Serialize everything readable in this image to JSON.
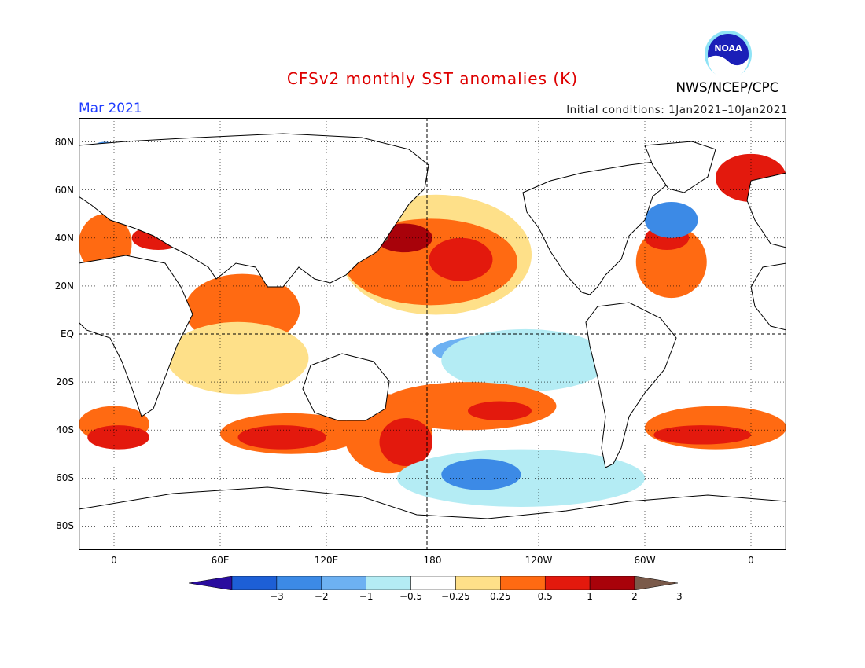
{
  "header": {
    "title": "CFSv2 monthly SST anomalies (K)",
    "month": "Mar 2021",
    "initial_conditions": "Initial conditions: 1Jan2021–10Jan2021",
    "organization": "NWS/NCEP/CPC",
    "logo_text": "NOAA"
  },
  "axes": {
    "lat_labels": [
      {
        "text": "80N",
        "lat": 80
      },
      {
        "text": "60N",
        "lat": 60
      },
      {
        "text": "40N",
        "lat": 40
      },
      {
        "text": "20N",
        "lat": 20
      },
      {
        "text": "EQ",
        "lat": 0
      },
      {
        "text": "20S",
        "lat": -20
      },
      {
        "text": "40S",
        "lat": -40
      },
      {
        "text": "60S",
        "lat": -60
      },
      {
        "text": "80S",
        "lat": -80
      }
    ],
    "lon_labels": [
      {
        "text": "0",
        "lon": 0
      },
      {
        "text": "60E",
        "lon": 60
      },
      {
        "text": "120E",
        "lon": 120
      },
      {
        "text": "180",
        "lon": 180
      },
      {
        "text": "120W",
        "lon": 240
      },
      {
        "text": "60W",
        "lon": 300
      },
      {
        "text": "0",
        "lon": 360
      }
    ],
    "lon_range": [
      -20,
      380
    ],
    "lat_range": [
      -90,
      90
    ]
  },
  "colorbar": {
    "labels": [
      "−3",
      "−2",
      "−1",
      "−0.5",
      "−0.25",
      "0.25",
      "0.5",
      "1",
      "2",
      "3"
    ],
    "colors": [
      "#2a0c9e",
      "#1d5fd6",
      "#3c8ae6",
      "#6db1f2",
      "#b4ecf4",
      "#ffffff",
      "#fee089",
      "#ff6a12",
      "#e3190d",
      "#a8020a",
      "#7a5a4a"
    ]
  },
  "anomaly_regions": [
    {
      "level": "#fee089",
      "lon": [
        128,
        236
      ],
      "lat": [
        8,
        58
      ]
    },
    {
      "level": "#ff6a12",
      "lon": [
        130,
        228
      ],
      "lat": [
        12,
        48
      ]
    },
    {
      "level": "#e3190d",
      "lon": [
        178,
        214
      ],
      "lat": [
        22,
        40
      ]
    },
    {
      "level": "#a8020a",
      "lon": [
        148,
        180
      ],
      "lat": [
        34,
        46
      ]
    },
    {
      "level": "#7a5a4a",
      "lon": [
        147,
        155
      ],
      "lat": [
        38,
        43
      ]
    },
    {
      "level": "#6db1f2",
      "lon": [
        180,
        272
      ],
      "lat": [
        -14,
        0
      ]
    },
    {
      "level": "#3c8ae6",
      "lon": [
        195,
        255
      ],
      "lat": [
        -12,
        -2
      ]
    },
    {
      "level": "#b4ecf4",
      "lon": [
        185,
        280
      ],
      "lat": [
        -24,
        2
      ]
    },
    {
      "level": "#ff6a12",
      "lon": [
        150,
        250
      ],
      "lat": [
        -40,
        -20
      ]
    },
    {
      "level": "#e3190d",
      "lon": [
        200,
        236
      ],
      "lat": [
        -36,
        -28
      ]
    },
    {
      "level": "#ff6a12",
      "lon": [
        40,
        105
      ],
      "lat": [
        -5,
        25
      ]
    },
    {
      "level": "#fee089",
      "lon": [
        30,
        110
      ],
      "lat": [
        -25,
        5
      ]
    },
    {
      "level": "#ff6a12",
      "lon": [
        -20,
        20
      ],
      "lat": [
        -45,
        -30
      ]
    },
    {
      "level": "#e3190d",
      "lon": [
        -15,
        20
      ],
      "lat": [
        -48,
        -38
      ]
    },
    {
      "level": "#ff6a12",
      "lon": [
        60,
        140
      ],
      "lat": [
        -50,
        -33
      ]
    },
    {
      "level": "#e3190d",
      "lon": [
        70,
        120
      ],
      "lat": [
        -48,
        -38
      ]
    },
    {
      "level": "#ff6a12",
      "lon": [
        130,
        180
      ],
      "lat": [
        -58,
        -25
      ]
    },
    {
      "level": "#e3190d",
      "lon": [
        150,
        180
      ],
      "lat": [
        -55,
        -35
      ]
    },
    {
      "level": "#b4ecf4",
      "lon": [
        160,
        300
      ],
      "lat": [
        -72,
        -48
      ]
    },
    {
      "level": "#3c8ae6",
      "lon": [
        185,
        230
      ],
      "lat": [
        -65,
        -52
      ]
    },
    {
      "level": "#ff6a12",
      "lon": [
        300,
        380
      ],
      "lat": [
        -48,
        -30
      ]
    },
    {
      "level": "#e3190d",
      "lon": [
        305,
        360
      ],
      "lat": [
        -46,
        -38
      ]
    },
    {
      "level": "#ff6a12",
      "lon": [
        295,
        335
      ],
      "lat": [
        15,
        45
      ]
    },
    {
      "level": "#e3190d",
      "lon": [
        300,
        325
      ],
      "lat": [
        35,
        45
      ]
    },
    {
      "level": "#3c8ae6",
      "lon": [
        300,
        330
      ],
      "lat": [
        40,
        55
      ]
    },
    {
      "level": "#e3190d",
      "lon": [
        340,
        380
      ],
      "lat": [
        55,
        75
      ]
    },
    {
      "level": "#e3190d",
      "lon": [
        -20,
        20
      ],
      "lat": [
        55,
        75
      ]
    },
    {
      "level": "#3c8ae6",
      "lon": [
        -15,
        5
      ],
      "lat": [
        70,
        80
      ]
    },
    {
      "level": "#ff6a12",
      "lon": [
        -20,
        10
      ],
      "lat": [
        25,
        50
      ]
    },
    {
      "level": "#e3190d",
      "lon": [
        10,
        40
      ],
      "lat": [
        35,
        45
      ]
    }
  ]
}
